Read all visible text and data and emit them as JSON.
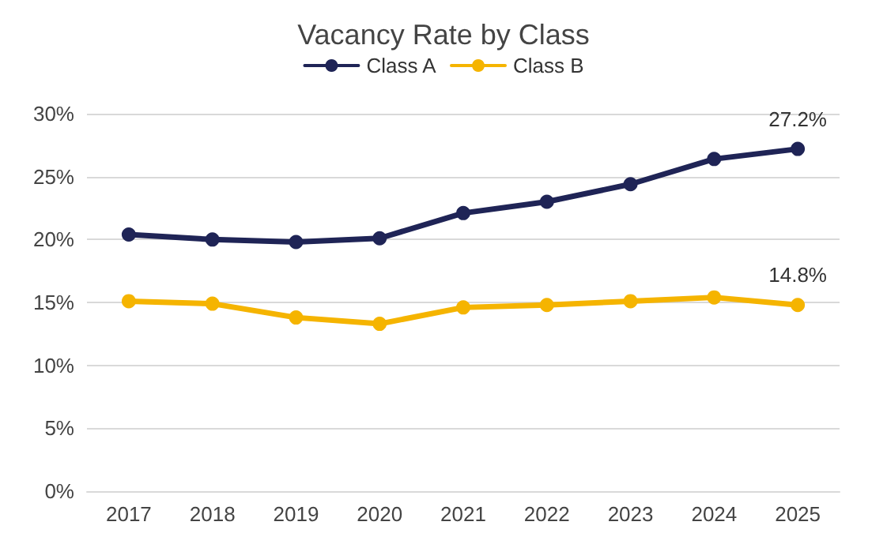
{
  "chart_data": {
    "type": "line",
    "title": "Vacancy Rate by Class",
    "categories": [
      "2017",
      "2018",
      "2019",
      "2020",
      "2021",
      "2022",
      "2023",
      "2024",
      "2025"
    ],
    "series": [
      {
        "name": "Class A",
        "color": "#1f2456",
        "values": [
          20.4,
          20.0,
          19.8,
          20.1,
          22.1,
          23.0,
          24.4,
          26.4,
          27.2
        ],
        "value_labels": [
          null,
          null,
          null,
          null,
          null,
          null,
          null,
          null,
          "27.2%"
        ]
      },
      {
        "name": "Class B",
        "color": "#f5b400",
        "values": [
          15.1,
          14.9,
          13.8,
          13.3,
          14.6,
          14.8,
          15.1,
          15.4,
          14.8
        ],
        "value_labels": [
          null,
          null,
          null,
          null,
          null,
          null,
          null,
          null,
          "14.8%"
        ]
      }
    ],
    "ylim": [
      0,
      30
    ],
    "yticks": [
      {
        "value": 0,
        "label": "0%"
      },
      {
        "value": 5,
        "label": "5%"
      },
      {
        "value": 10,
        "label": "10%"
      },
      {
        "value": 15,
        "label": "15%"
      },
      {
        "value": 20,
        "label": "20%"
      },
      {
        "value": 25,
        "label": "25%"
      },
      {
        "value": 30,
        "label": "30%"
      }
    ],
    "grid": "y",
    "legend": "top",
    "marker": "circle",
    "line_style": "solid"
  }
}
